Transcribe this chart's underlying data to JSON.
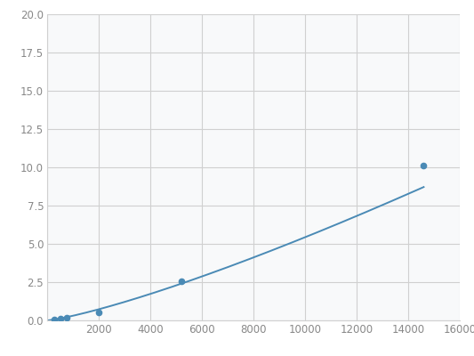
{
  "x": [
    250,
    500,
    750,
    2000,
    5200,
    14600
  ],
  "y": [
    0.07,
    0.13,
    0.18,
    0.55,
    2.55,
    10.1
  ],
  "line_color": "#4a8ab5",
  "marker_color": "#4a8ab5",
  "marker_size": 4.5,
  "xlim": [
    0,
    16000
  ],
  "ylim": [
    0,
    20.0
  ],
  "xticks": [
    0,
    2000,
    4000,
    6000,
    8000,
    10000,
    12000,
    14000,
    16000
  ],
  "yticks": [
    0.0,
    2.5,
    5.0,
    7.5,
    10.0,
    12.5,
    15.0,
    17.5,
    20.0
  ],
  "grid_color": "#d0d0d0",
  "background_color": "#f8f9fa",
  "figure_background": "#ffffff",
  "tick_label_color": "#888888",
  "tick_fontsize": 8.5
}
